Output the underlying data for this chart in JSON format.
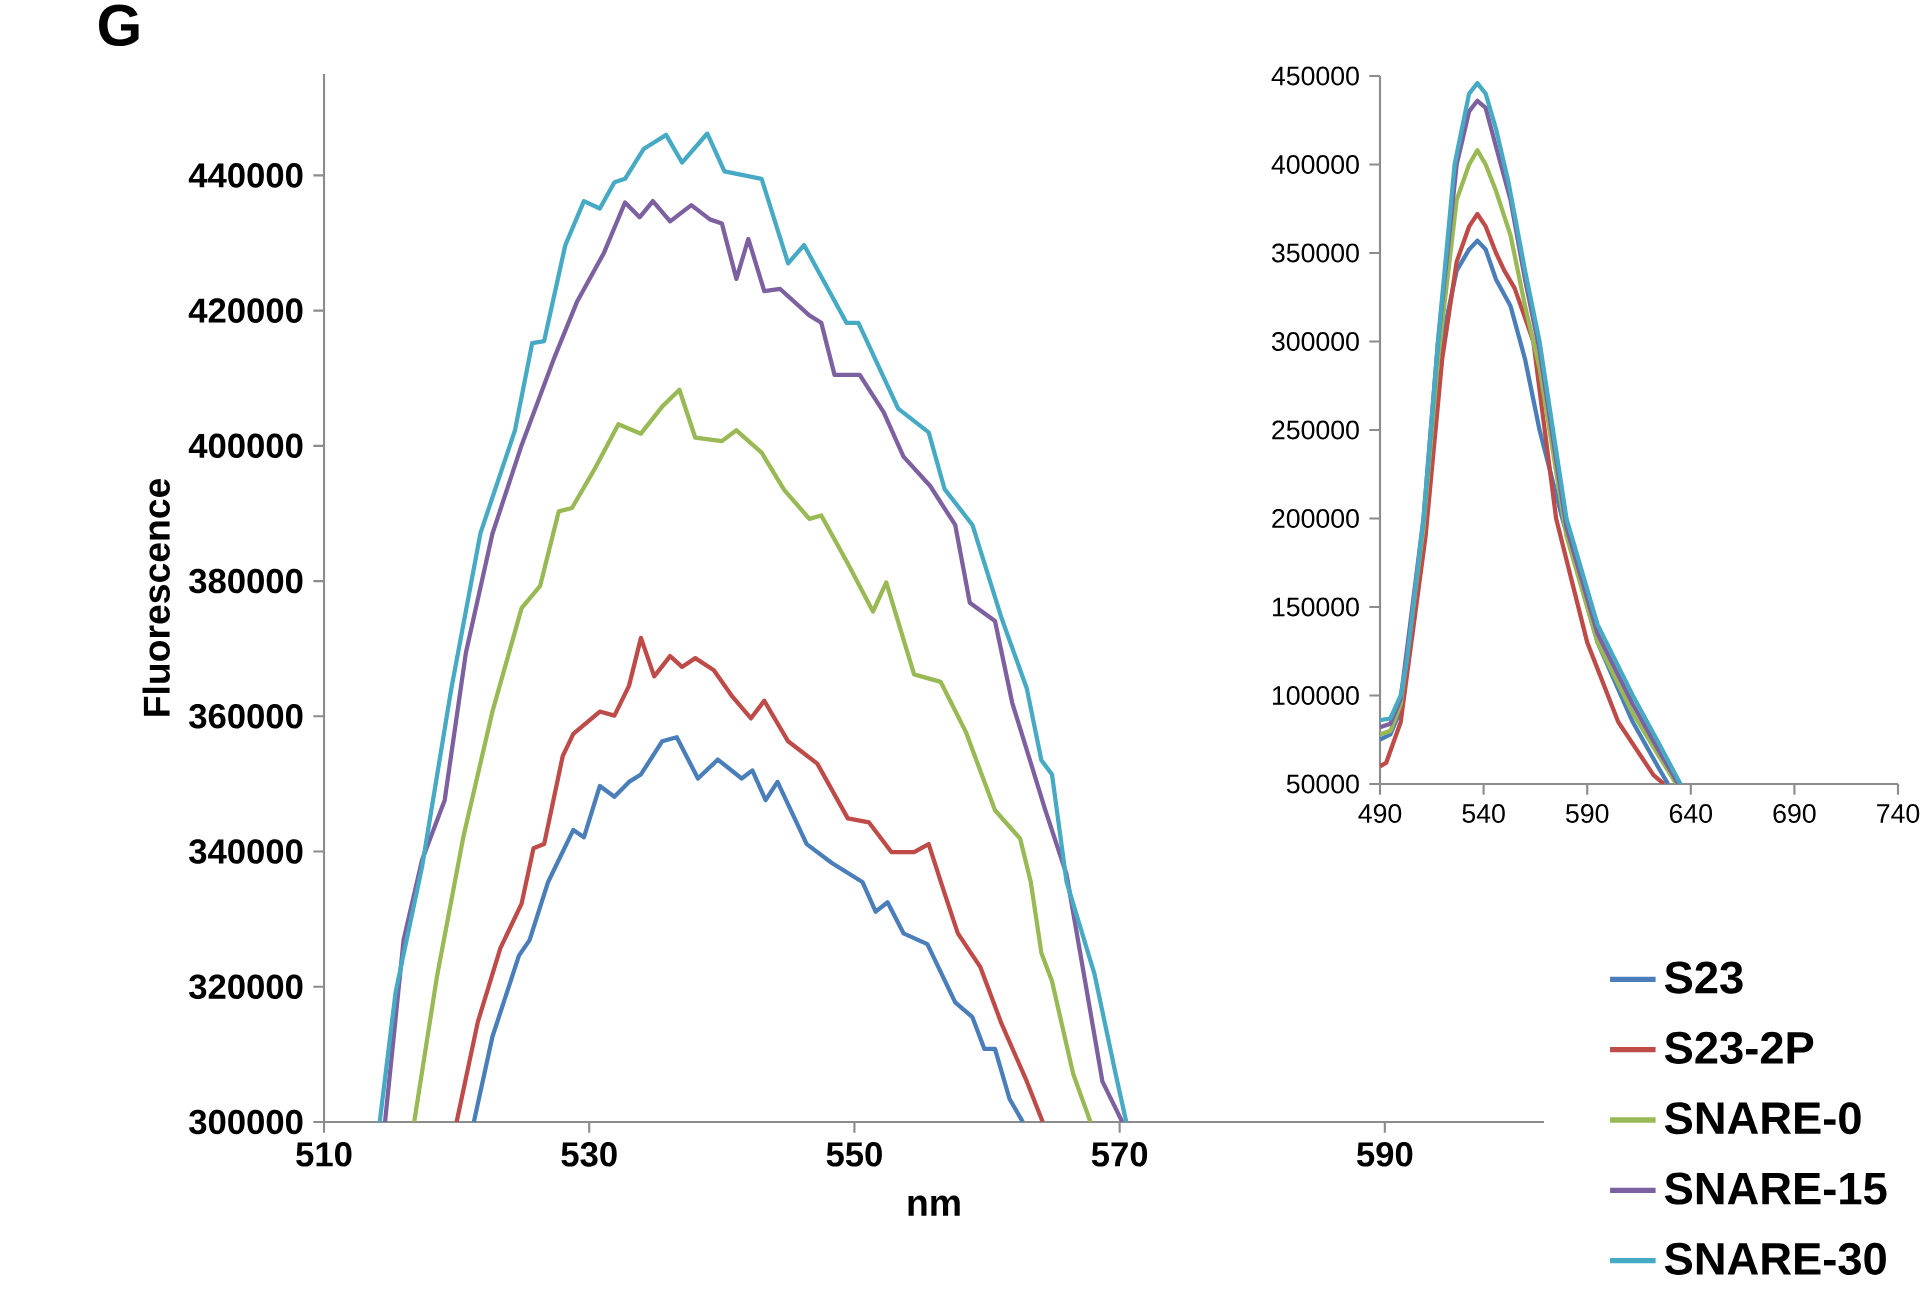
{
  "chart_data": [
    {
      "type": "line",
      "xlabel": "nm",
      "ylabel": "Fluorescence",
      "annotations": [
        "G"
      ],
      "legend": "bottom right",
      "xlim": [
        510,
        602
      ],
      "ylim": [
        300000,
        455000
      ],
      "xticks": [
        510,
        530,
        550,
        570,
        590
      ],
      "yticks": [
        300000,
        320000,
        340000,
        360000,
        380000,
        400000,
        420000,
        440000
      ],
      "series": [
        {
          "name": "S23",
          "color": "#4a7ebb",
          "x": [
            521.3,
            522.7,
            524.7,
            525.5,
            526.9,
            528.8,
            529.6,
            530.8,
            531.9,
            533.0,
            533.9,
            535.5,
            536.6,
            538.2,
            539.7,
            541.5,
            542.3,
            543.3,
            544.2,
            546.4,
            548.3,
            550.6,
            551.6,
            552.5,
            553.7,
            555.5,
            557.6,
            558.9,
            559.8,
            560.6,
            561.7,
            562.7
          ],
          "values": [
            300000,
            312600,
            324600,
            326900,
            335500,
            343200,
            342100,
            349700,
            348100,
            350300,
            351400,
            356300,
            356900,
            350800,
            353600,
            350800,
            352000,
            347600,
            350300,
            341100,
            338300,
            335500,
            331100,
            332500,
            327900,
            326300,
            317700,
            315500,
            310800,
            310800,
            303400,
            300000
          ]
        },
        {
          "name": "S23-2P",
          "color": "#be4b48",
          "x": [
            520.0,
            521.6,
            523.3,
            524.9,
            525.8,
            526.6,
            528.0,
            528.8,
            530.8,
            531.9,
            533.0,
            533.9,
            534.9,
            536.1,
            537.0,
            538.0,
            539.4,
            540.8,
            542.2,
            543.2,
            545.0,
            547.2,
            549.5,
            551.1,
            552.8,
            554.5,
            555.6,
            556.7,
            557.8,
            559.5,
            561.1,
            563.0,
            564.2
          ],
          "values": [
            300000,
            314800,
            325700,
            332300,
            340500,
            341100,
            354100,
            357400,
            360700,
            360100,
            364500,
            371600,
            365900,
            368900,
            367300,
            368600,
            366800,
            362900,
            359700,
            362300,
            356300,
            353000,
            344900,
            344300,
            339900,
            339900,
            341100,
            334400,
            327900,
            322900,
            314500,
            306000,
            300000
          ]
        },
        {
          "name": "SNARE-0",
          "color": "#98b954",
          "x": [
            516.8,
            518.5,
            520.5,
            522.7,
            524.9,
            526.3,
            527.7,
            528.7,
            530.5,
            532.2,
            533.9,
            535.5,
            536.8,
            538.0,
            540.0,
            541.1,
            543.0,
            544.7,
            546.6,
            547.5,
            549.5,
            551.4,
            552.4,
            554.5,
            556.5,
            558.4,
            560.6,
            562.5,
            563.3,
            564.1,
            564.9,
            566.5,
            567.8
          ],
          "values": [
            300000,
            321300,
            342100,
            360700,
            376000,
            379300,
            390300,
            390800,
            396900,
            403200,
            401800,
            405800,
            408300,
            401200,
            400700,
            402300,
            399000,
            393500,
            389200,
            389700,
            382600,
            375500,
            379800,
            366200,
            365100,
            357700,
            346100,
            341900,
            335500,
            325000,
            320800,
            307100,
            300000
          ]
        },
        {
          "name": "SNARE-15",
          "color": "#7d60a0",
          "x": [
            514.6,
            516.0,
            517.4,
            519.1,
            520.7,
            522.7,
            524.9,
            527.4,
            529.1,
            531.1,
            532.7,
            533.8,
            534.8,
            536.1,
            537.7,
            539.1,
            540.0,
            541.1,
            542.0,
            543.2,
            544.4,
            546.6,
            547.5,
            548.5,
            550.4,
            552.2,
            553.7,
            555.7,
            557.6,
            558.7,
            560.6,
            561.9,
            564.4,
            566.0,
            567.3,
            568.7,
            570.2
          ],
          "values": [
            300000,
            326900,
            338800,
            347600,
            369400,
            387000,
            400100,
            413200,
            421400,
            428500,
            436000,
            433800,
            436200,
            433200,
            435600,
            433500,
            432900,
            424700,
            430600,
            422900,
            423200,
            419300,
            418200,
            410500,
            410500,
            405000,
            398400,
            394100,
            388300,
            376800,
            374100,
            362000,
            346100,
            336600,
            321900,
            306000,
            300000
          ]
        },
        {
          "name": "SNARE-30",
          "color": "#46aac5",
          "x": [
            514.2,
            515.4,
            517.4,
            519.6,
            521.8,
            524.4,
            525.7,
            526.6,
            528.2,
            529.6,
            530.8,
            531.9,
            532.7,
            534.1,
            535.8,
            537.0,
            538.9,
            540.2,
            543.0,
            545.0,
            546.2,
            549.4,
            550.3,
            553.3,
            555.6,
            556.8,
            558.9,
            561.1,
            563.0,
            564.1,
            564.9,
            566.0,
            568.1,
            569.7,
            570.5
          ],
          "values": [
            300000,
            319200,
            337800,
            364100,
            387100,
            402300,
            415200,
            415500,
            429700,
            436200,
            435100,
            439000,
            439500,
            443900,
            446000,
            441900,
            446200,
            440600,
            439500,
            427000,
            429700,
            418200,
            418200,
            405500,
            402000,
            393600,
            388300,
            374500,
            364100,
            353500,
            351400,
            335500,
            321900,
            307100,
            300000
          ]
        }
      ]
    },
    {
      "type": "line",
      "xlim": [
        490,
        740
      ],
      "ylim": [
        50000,
        450000
      ],
      "xticks": [
        490,
        540,
        590,
        640,
        690,
        740
      ],
      "yticks": [
        50000,
        100000,
        150000,
        200000,
        250000,
        300000,
        350000,
        400000,
        450000
      ],
      "series": [
        {
          "color": "#4a7ebb",
          "x": [
            490,
            495,
            500,
            511,
            518,
            527,
            533,
            537,
            541,
            546,
            553,
            560,
            567,
            578,
            595,
            612,
            625,
            629
          ],
          "values": [
            75000,
            78000,
            92000,
            190000,
            290000,
            340000,
            352000,
            357000,
            352000,
            335000,
            320000,
            290000,
            250000,
            200000,
            130000,
            85000,
            58000,
            50000
          ]
        },
        {
          "color": "#be4b48",
          "x": [
            490,
            493,
            500,
            512,
            520,
            527,
            533,
            537,
            541,
            546,
            550,
            555,
            564,
            575,
            590,
            605,
            622,
            627
          ],
          "values": [
            60000,
            62000,
            85000,
            190000,
            290000,
            345000,
            365000,
            372000,
            365000,
            350000,
            340000,
            330000,
            300000,
            200000,
            130000,
            85000,
            55000,
            50000
          ]
        },
        {
          "color": "#98b954",
          "x": [
            490,
            495,
            500,
            511,
            518,
            527,
            533,
            537,
            541,
            546,
            553,
            560,
            567,
            580,
            595,
            612,
            625,
            633
          ],
          "values": [
            78000,
            80000,
            95000,
            195000,
            290000,
            380000,
            400000,
            408000,
            400000,
            385000,
            360000,
            320000,
            285000,
            190000,
            130000,
            90000,
            65000,
            50000
          ]
        },
        {
          "color": "#7d60a0",
          "x": [
            490,
            495,
            500,
            511,
            518,
            527,
            533,
            537,
            541,
            546,
            553,
            560,
            567,
            580,
            595,
            612,
            625,
            634
          ],
          "values": [
            82000,
            84000,
            98000,
            200000,
            300000,
            400000,
            430000,
            436000,
            432000,
            410000,
            380000,
            335000,
            295000,
            195000,
            135000,
            95000,
            68000,
            50000
          ]
        },
        {
          "color": "#46aac5",
          "x": [
            490,
            495,
            500,
            503,
            511,
            518,
            526,
            533,
            537,
            541,
            546,
            552,
            560,
            567,
            580,
            595,
            612,
            625,
            635
          ],
          "values": [
            86000,
            87000,
            100000,
            120000,
            200000,
            300000,
            400000,
            440000,
            446000,
            440000,
            420000,
            390000,
            340000,
            300000,
            200000,
            140000,
            100000,
            72000,
            50000
          ]
        }
      ]
    }
  ]
}
